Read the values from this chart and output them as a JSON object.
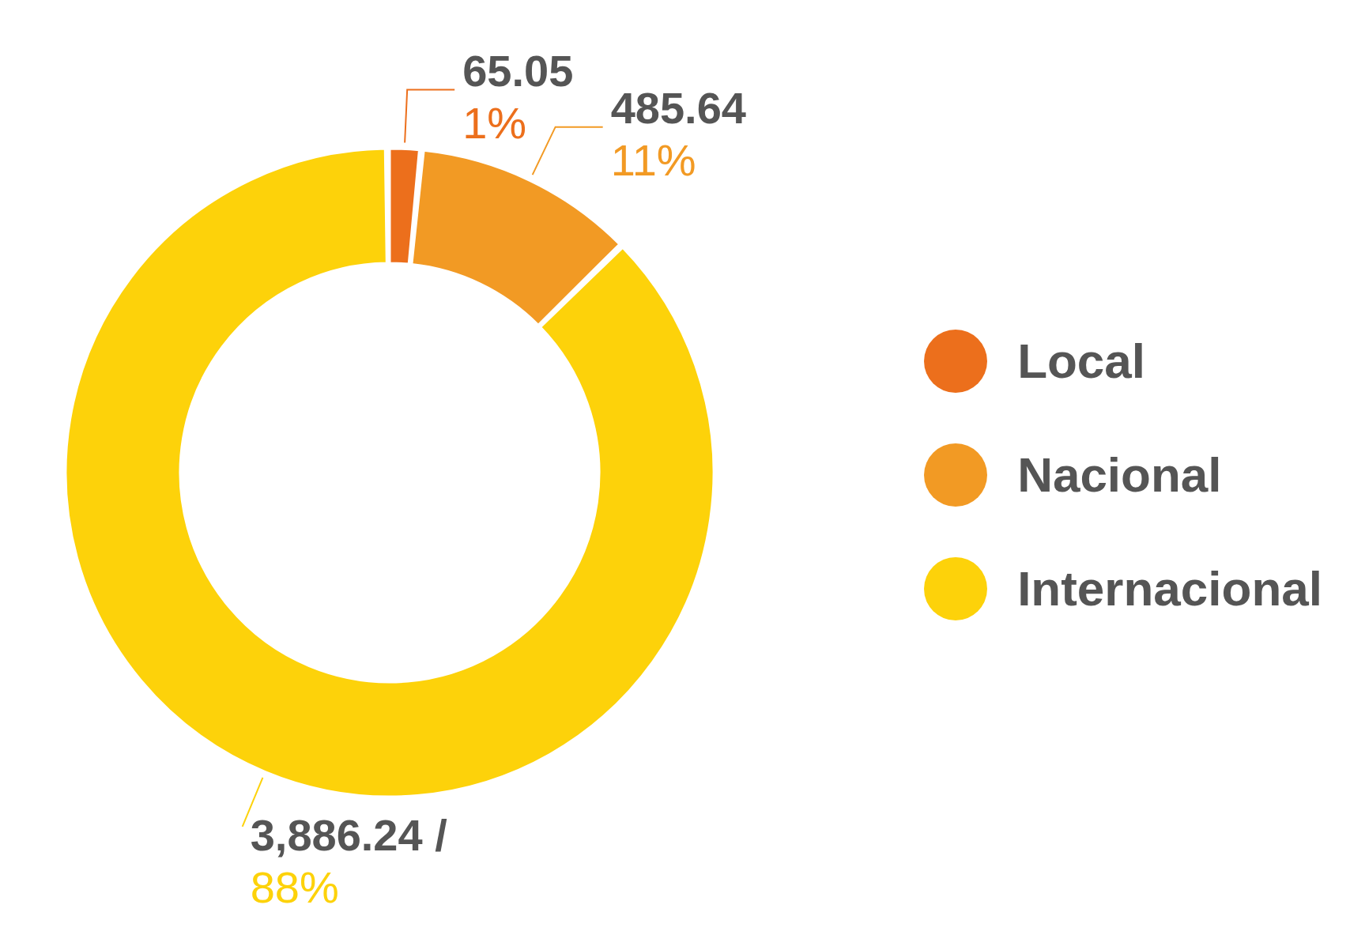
{
  "chart_data": {
    "type": "donut",
    "categories": [
      "Local",
      "Nacional",
      "Internacional"
    ],
    "values": [
      65.05,
      485.64,
      3886.24
    ],
    "colors": [
      "#ec6f1c",
      "#f29a24",
      "#fdd20a"
    ],
    "value_labels": [
      "65.05",
      "485.64",
      "3,886.24 /"
    ],
    "annotations": [
      {
        "text": "1%",
        "x": "Local"
      },
      {
        "text": "11%",
        "x": "Nacional"
      },
      {
        "text": "88%",
        "x": "Internacional"
      }
    ],
    "legend": "right"
  }
}
